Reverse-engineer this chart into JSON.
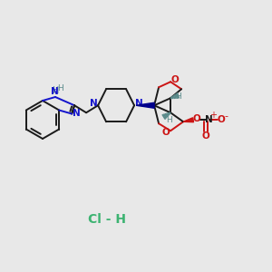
{
  "bg_color": "#e8e8e8",
  "bond_color": "#1a1a1a",
  "N_color": "#1414cc",
  "O_color": "#cc1414",
  "H_color": "#5a8a8a",
  "Cl_color": "#3cb371",
  "figsize": [
    3.0,
    3.0
  ],
  "dpi": 100,
  "xlim": [
    0,
    300
  ],
  "ylim": [
    0,
    300
  ]
}
